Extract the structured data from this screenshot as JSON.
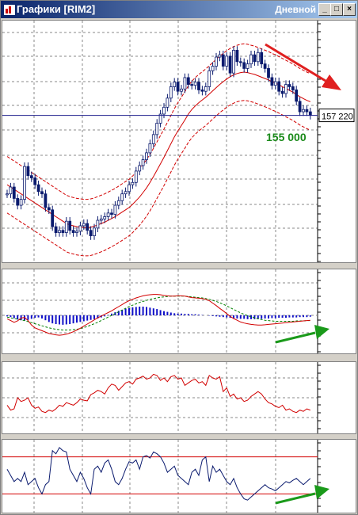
{
  "window": {
    "title": "Графики [RIM2]",
    "timeframe": "Дневной",
    "buttons": {
      "minimize": "_",
      "maximize": "□",
      "close": "×"
    }
  },
  "price_pane": {
    "current_price_label": "157 220",
    "annotation": "155 000",
    "candles": [
      140000,
      141500,
      139000,
      137500,
      138800,
      146000,
      144000,
      143500,
      142000,
      140500,
      140000,
      137000,
      136500,
      132800,
      131500,
      132000,
      131500,
      134000,
      132000,
      131500,
      131800,
      133000,
      133500,
      132000,
      130800,
      132500,
      134200,
      134500,
      135000,
      135800,
      135500,
      137500,
      138500,
      140000,
      140500,
      142000,
      142500,
      145000,
      146200,
      147500,
      149000,
      151000,
      153000,
      155500,
      157500,
      159000,
      161000,
      163500,
      164500,
      162500,
      163000,
      165500,
      164000,
      163800,
      164500,
      162800,
      162500,
      163500,
      167000,
      168000,
      170000,
      170500,
      168000,
      170200,
      166500,
      171500,
      169000,
      168800,
      167500,
      168500,
      170500,
      169000,
      171000,
      168500,
      167500,
      165500,
      163800,
      164600,
      162500,
      162000,
      164000,
      163500,
      162800,
      160300,
      158000,
      158500,
      158000,
      157220
    ],
    "ma_center": [
      142000,
      141500,
      141000,
      140500,
      140000,
      139500,
      139000,
      138500,
      138000,
      137500,
      137000,
      136500,
      136000,
      135500,
      135000,
      134500,
      134000,
      133500,
      133200,
      133000,
      132800,
      132700,
      132600,
      132600,
      132700,
      132900,
      133200,
      133500,
      133800,
      134200,
      134600,
      135000,
      135500,
      136000,
      136500,
      137000,
      137700,
      138500,
      139300,
      140300,
      141300,
      142500,
      143800,
      145200,
      146600,
      148000,
      149500,
      151000,
      152500,
      153800,
      155000,
      156200,
      157500,
      158500,
      159300,
      160000,
      160600,
      161200,
      161900,
      162600,
      163300,
      164000,
      164600,
      165200,
      165700,
      166100,
      166400,
      166600,
      166700,
      166600,
      166400,
      166200,
      165900,
      165600,
      165300,
      165000,
      164600,
      164300,
      163900,
      163500,
      163100,
      162700,
      162300,
      161800,
      161300,
      160900,
      160500,
      160200
    ],
    "band_width": 6200
  },
  "macd_pane": {
    "histogram": [
      -0.3,
      -0.5,
      -0.8,
      -1.2,
      -1.4,
      -1.5,
      -1.3,
      -1.0,
      -0.7,
      -0.6,
      -0.9,
      -1.4,
      -1.9,
      -2.3,
      -2.5,
      -2.6,
      -2.7,
      -2.6,
      -2.5,
      -2.3,
      -2.1,
      -1.9,
      -1.7,
      -1.5,
      -1.3,
      -1.1,
      -0.9,
      -0.6,
      -0.3,
      0.1,
      0.5,
      0.9,
      1.3,
      1.6,
      1.9,
      2.1,
      2.3,
      2.4,
      2.5,
      2.5,
      2.4,
      2.2,
      2.0,
      1.8,
      1.5,
      1.2,
      1.0,
      0.8,
      0.6,
      0.5,
      0.5,
      0.4,
      0.4,
      0.3,
      0.3,
      0.2,
      0.1,
      0.0,
      -0.1,
      -0.2,
      -0.3,
      -0.4,
      -0.5,
      -0.6,
      -0.7,
      -0.8,
      -0.9,
      -1.0,
      -1.0,
      -1.1,
      -1.1,
      -1.1,
      -1.0,
      -1.0,
      -0.9,
      -0.9,
      -0.8,
      -0.8,
      -0.7,
      -0.7,
      -0.7,
      -0.6,
      -0.6,
      -0.6,
      -0.5,
      -0.5,
      -0.5,
      -0.4
    ],
    "macd": [
      -1.0,
      -1.5,
      -2.0,
      -1.6,
      -0.8,
      -0.6,
      -1.5,
      -2.8,
      -3.6,
      -4.0,
      -4.4,
      -4.8,
      -5.2,
      -5.4,
      -5.6,
      -5.7,
      -5.6,
      -5.4,
      -5.1,
      -4.7,
      -4.2,
      -3.7,
      -3.1,
      -2.5,
      -1.9,
      -1.3,
      -0.7,
      -0.2,
      0.3,
      0.8,
      1.3,
      1.9,
      2.5,
      3.1,
      3.7,
      4.2,
      4.6,
      5.0,
      5.3,
      5.6,
      5.8,
      5.9,
      6.0,
      6.0,
      5.9,
      5.7,
      5.6,
      5.5,
      5.5,
      5.6,
      5.6,
      5.5,
      5.3,
      5.1,
      5.0,
      4.9,
      4.8,
      4.6,
      4.2,
      3.5,
      2.8,
      2.0,
      1.3,
      0.5,
      -0.3,
      -0.9,
      -1.4,
      -1.9,
      -2.2,
      -2.4,
      -2.6,
      -2.7,
      -2.8,
      -2.8,
      -2.7,
      -2.6,
      -2.5,
      -2.4,
      -2.3,
      -2.2,
      -2.1,
      -2.0,
      -1.9,
      -1.8,
      -1.7,
      -1.6,
      -1.5,
      -1.4
    ],
    "signal": [
      -0.5,
      -0.7,
      -0.9,
      -1.1,
      -1.3,
      -1.5,
      -1.8,
      -2.1,
      -2.4,
      -2.7,
      -3.0,
      -3.3,
      -3.6,
      -3.8,
      -4.0,
      -4.1,
      -4.2,
      -4.2,
      -4.2,
      -4.1,
      -4.0,
      -3.8,
      -3.5,
      -3.2,
      -2.8,
      -2.4,
      -2.0,
      -1.5,
      -1.0,
      -0.5,
      0.0,
      0.5,
      1.0,
      1.5,
      2.0,
      2.5,
      2.9,
      3.3,
      3.7,
      4.0,
      4.3,
      4.6,
      4.8,
      5.0,
      5.2,
      5.3,
      5.4,
      5.5,
      5.5,
      5.5,
      5.5,
      5.5,
      5.4,
      5.3,
      5.2,
      5.1,
      5.0,
      4.8,
      4.6,
      4.3,
      4.0,
      3.6,
      3.2,
      2.7,
      2.2,
      1.7,
      1.2,
      0.7,
      0.3,
      -0.1,
      -0.4,
      -0.7,
      -1.0,
      -1.2,
      -1.4,
      -1.5,
      -1.6,
      -1.7,
      -1.7,
      -1.7,
      -1.7,
      -1.7,
      -1.7,
      -1.6,
      -1.6,
      -1.6,
      -1.5,
      -1.5
    ]
  },
  "osc_pane": {
    "values": [
      38,
      30,
      32,
      50,
      44,
      46,
      50,
      38,
      33,
      35,
      28,
      26,
      30,
      28,
      32,
      38,
      36,
      42,
      40,
      38,
      42,
      48,
      46,
      45,
      55,
      58,
      62,
      60,
      56,
      66,
      72,
      70,
      62,
      68,
      74,
      76,
      72,
      80,
      82,
      85,
      80,
      82,
      88,
      86,
      78,
      82,
      76,
      84,
      86,
      80,
      82,
      70,
      74,
      78,
      80,
      74,
      76,
      70,
      86,
      82,
      80,
      84,
      60,
      66,
      52,
      56,
      48,
      50,
      44,
      46,
      52,
      56,
      60,
      56,
      48,
      42,
      40,
      36,
      34,
      38,
      30,
      32,
      28,
      26,
      30,
      28,
      32,
      30
    ]
  },
  "stoch_pane": {
    "values": [
      60,
      50,
      40,
      45,
      40,
      55,
      35,
      40,
      45,
      30,
      20,
      35,
      40,
      90,
      85,
      95,
      90,
      88,
      60,
      50,
      40,
      55,
      45,
      30,
      20,
      60,
      65,
      55,
      70,
      75,
      60,
      40,
      35,
      45,
      60,
      72,
      70,
      75,
      60,
      80,
      82,
      78,
      88,
      85,
      80,
      70,
      55,
      60,
      65,
      50,
      45,
      40,
      35,
      55,
      60,
      50,
      75,
      80,
      40,
      65,
      55,
      60,
      50,
      40,
      35,
      45,
      30,
      20,
      12,
      10,
      15,
      20,
      25,
      30,
      35,
      30,
      28,
      25,
      30,
      35,
      40,
      38,
      42,
      45,
      40,
      35,
      40,
      45
    ]
  },
  "colors": {
    "candle": "#0a1a6e",
    "band": "#d20000",
    "macd_histogram": "#1010c8",
    "signal": "#008000",
    "annotation": "#1a8a1a",
    "arrow_red": "#e02020",
    "arrow_green": "#1a9a1a"
  }
}
